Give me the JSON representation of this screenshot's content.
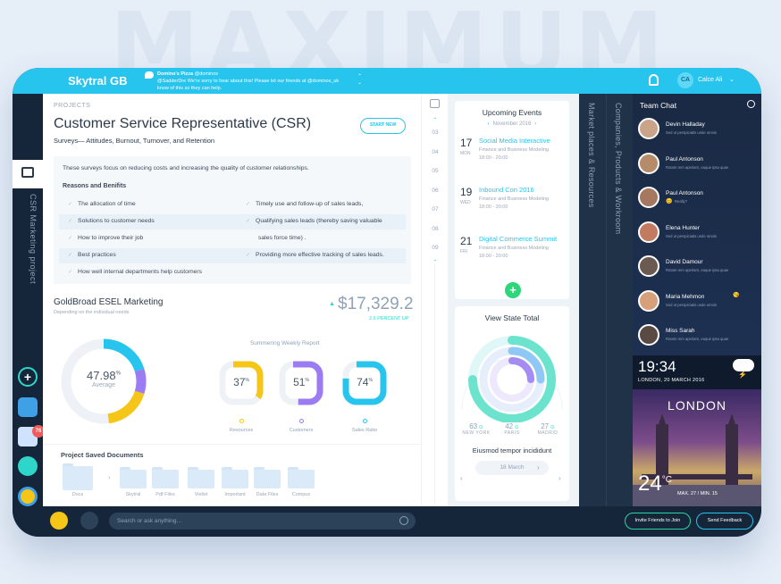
{
  "bg_word": "MAXIMUM",
  "brand": "Skytral GB",
  "tweet": {
    "handle": "Domino's Pizza",
    "at": "@dominos",
    "text1": "@SadderDre We're sorry to hear about this! Please let our friends at @dominos_uk",
    "text2": "know of this so they can help."
  },
  "user": {
    "initials": "CA",
    "name": "Calce Ali"
  },
  "rail_label": "CSR Marketing project",
  "rail_badge": "76",
  "projects_label": "PROJECTS",
  "title": "Customer Service Representative (CSR)",
  "subtitle": "Surveys— Attitudes, Burnout, Turnover, and Retention",
  "start_new": "START NEW",
  "survey_desc": "These surveys focus on reducing costs and increasing the quality of customer relationships.",
  "reasons_title": "Reasons and Benifits",
  "benefits": [
    [
      "The allocation of time",
      "Timely use and follow-up of sales leads,"
    ],
    [
      "Solutions to customer needs",
      "Qualifying sales leads (thereby saving valuable"
    ],
    [
      "How to improve their job",
      "sales force time) ."
    ],
    [
      "Best practices",
      "Providing more effective tracking of sales leads."
    ],
    [
      "How well internal departments help customers",
      ""
    ]
  ],
  "goldbroad": {
    "title": "GoldBroad ESEL Marketing",
    "sub": "Depending on the individual needs",
    "amount": "$17,329.2",
    "pct": "2.6 PERCENT UP"
  },
  "donut": {
    "value": "47.98",
    "unit": "%",
    "label": "Average",
    "pct": 47.98,
    "colors": [
      "#27c4ee",
      "#9b7cf2",
      "#f5c518"
    ]
  },
  "weekly": {
    "title": "Summering Weekly Report",
    "items": [
      {
        "value": "37",
        "unit": "%",
        "label": "Resources",
        "pct": 37,
        "color": "#f5c518"
      },
      {
        "value": "51",
        "unit": "%",
        "label": "Customers",
        "pct": 51,
        "color": "#9b7cf2"
      },
      {
        "value": "74",
        "unit": "%",
        "label": "Sales Ratio",
        "pct": 74,
        "color": "#27c4ee"
      }
    ]
  },
  "docs": {
    "title": "Project Saved Documents",
    "folders": [
      "Docs",
      "Skytral",
      "Pdf Files",
      "Vielist",
      "Important",
      "Data Files",
      "Compus"
    ]
  },
  "dates": [
    "03",
    "04",
    "05",
    "06",
    "07",
    "08",
    "09"
  ],
  "events": {
    "title": "Upcoming Events",
    "month": "November 2016",
    "items": [
      {
        "day": "17",
        "dow": "MON",
        "title": "Social Media Interactive",
        "sub": "Finance and Business Modeling",
        "time": "18:00 - 20:00"
      },
      {
        "day": "19",
        "dow": "WED",
        "title": "Inbound Con 2016",
        "sub": "Finance and Business Modeling",
        "time": "18:00 - 20:00"
      },
      {
        "day": "21",
        "dow": "FRI",
        "title": "Digital Commerce Summit",
        "sub": "Finance and Business Modeling",
        "time": "18:00 - 20:00"
      }
    ]
  },
  "vst": {
    "title": "View State Total",
    "stats": [
      {
        "n": "63",
        "c": "NEW YORK"
      },
      {
        "n": "42",
        "c": "PARIS"
      },
      {
        "n": "27",
        "c": "MADRID"
      }
    ],
    "sub": "Eiusmod tempor incididunt",
    "date": "18 March"
  },
  "panels": [
    "Market places & Resources",
    "Companies, Products & Workroom"
  ],
  "chat": {
    "title": "Team Chat",
    "items": [
      {
        "name": "Devin Halladay",
        "msg": "Sed ut perspiciatis unde omnis",
        "color": "#c9a489"
      },
      {
        "name": "Paul Antonson",
        "msg": "Rotam rem aperiam, eaque ipsa quae",
        "color": "#b58b6a"
      },
      {
        "name": "Paul Antonson",
        "msg": "Really?",
        "emoji": "😊",
        "color": "#a67860"
      },
      {
        "name": "Elena Hunter",
        "msg": "Sed ut perspiciatis unde omnis",
        "color": "#c27b60"
      },
      {
        "name": "David Damour",
        "msg": "Rotam rem aperiam, eaque ipsa quae",
        "color": "#6b5a50"
      },
      {
        "name": "Maria Mehmon",
        "msg": "Sed ut perspiciatis unde omnis",
        "emoji": "😘",
        "color": "#d8a07a"
      },
      {
        "name": "Miss Sarah",
        "msg": "Rotam rem aperiam, eaque ipsa quae",
        "color": "#5a4a44"
      }
    ]
  },
  "clock": {
    "time": "19:34",
    "date": "LONDON, 20 MARCH 2016"
  },
  "weather": {
    "city": "LONDON",
    "temp": "24",
    "unit": "°C",
    "minmax": "MAX. 27 / MIN. 15"
  },
  "search_placeholder": "Search or ask anything...",
  "invite": "Invite Friends to Join",
  "feedback": "Send Feedback"
}
